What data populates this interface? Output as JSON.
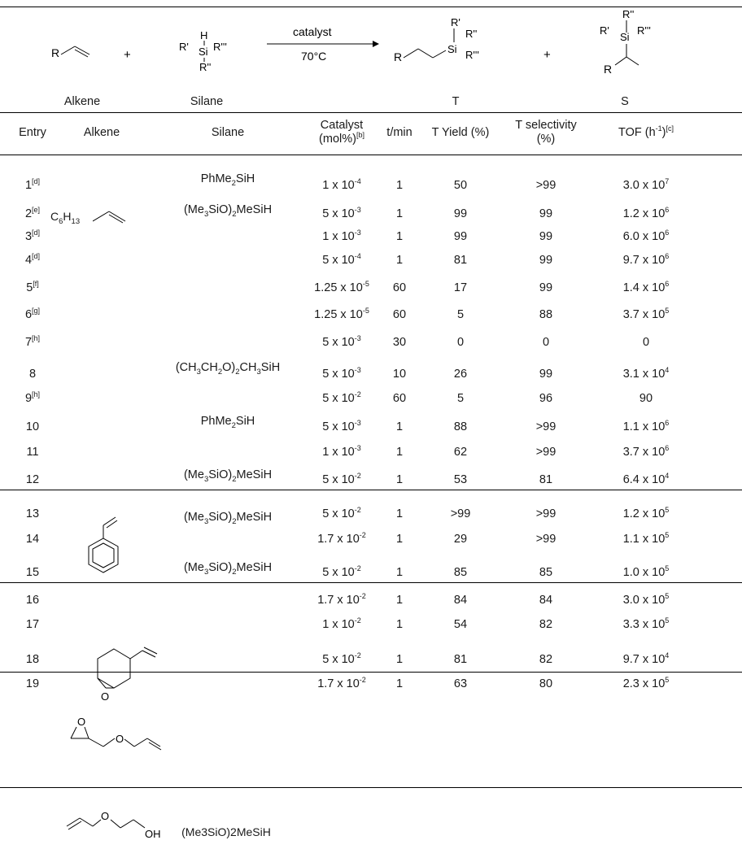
{
  "scheme": {
    "alkene_label": "Alkene",
    "silane_label": "Silane",
    "plus": "+",
    "catalyst": "catalyst",
    "temperature": "70°C",
    "product_t": "T",
    "product_s": "S",
    "r": "R",
    "r1": "R'",
    "r2": "R''",
    "r3": "R'''",
    "h": "H",
    "si": "Si"
  },
  "columns": {
    "entry": "Entry",
    "alkene": "Alkene",
    "silane": "Silane",
    "catalyst_line1": "Catalyst",
    "catalyst_line2": "(mol%)",
    "catalyst_note": "[b]",
    "time": "t/min",
    "yield": "T Yield (%)",
    "selectivity_line1": "T selectivity",
    "selectivity_line2": "(%)",
    "tof": "TOF (h",
    "tof_exp": "-1",
    "tof_end": ")",
    "tof_note": "[c]"
  },
  "alkene_labels": {
    "octene_formula": "C6H13",
    "epoxide_o": "O",
    "ether_o": "O",
    "alcohol_o": "O",
    "alcohol_oh": "OH"
  },
  "rows": [
    {
      "entry": "1",
      "note": "[d]",
      "silane": "PhMe2SiH",
      "cat_base": "1 x 10",
      "cat_exp": "-4",
      "t": "1",
      "yield": "50",
      "sel": ">99",
      "tof_base": "3.0 x 10",
      "tof_exp": "7"
    },
    {
      "entry": "2",
      "note": "[e]",
      "silane": "(Me3SiO)2MeSiH",
      "cat_base": "5 x 10",
      "cat_exp": "-3",
      "t": "1",
      "yield": "99",
      "sel": "99",
      "tof_base": "1.2 x 10",
      "tof_exp": "6"
    },
    {
      "entry": "3",
      "note": "[d]",
      "silane": "",
      "cat_base": "1 x 10",
      "cat_exp": "-3",
      "t": "1",
      "yield": "99",
      "sel": "99",
      "tof_base": "6.0 x 10",
      "tof_exp": "6"
    },
    {
      "entry": "4",
      "note": "[d]",
      "silane": "",
      "cat_base": "5 x 10",
      "cat_exp": "-4",
      "t": "1",
      "yield": "81",
      "sel": "99",
      "tof_base": "9.7 x 10",
      "tof_exp": "6"
    },
    {
      "entry": "5",
      "note": "[f]",
      "silane": "",
      "cat_base": "1.25 x 10",
      "cat_exp": "-5",
      "t": "60",
      "yield": "17",
      "sel": "99",
      "tof_base": "1.4 x 10",
      "tof_exp": "6"
    },
    {
      "entry": "6",
      "note": "[g]",
      "silane": "",
      "cat_base": "1.25 x 10",
      "cat_exp": "-5",
      "t": "60",
      "yield": "5",
      "sel": "88",
      "tof_base": "3.7 x 10",
      "tof_exp": "5"
    },
    {
      "entry": "7",
      "note": "[h]",
      "silane": "",
      "cat_base": "5 x 10",
      "cat_exp": "-3",
      "t": "30",
      "yield": "0",
      "sel": "0",
      "tof_base": "0",
      "tof_exp": ""
    },
    {
      "entry": "8",
      "note": "",
      "silane": "(CH3CH2O)2CH3SiH",
      "cat_base": "5 x 10",
      "cat_exp": "-3",
      "t": "10",
      "yield": "26",
      "sel": "99",
      "tof_base": "3.1 x 10",
      "tof_exp": "4"
    },
    {
      "entry": "9",
      "note": "[h]",
      "silane": "",
      "cat_base": "5 x 10",
      "cat_exp": "-2",
      "t": "60",
      "yield": "5",
      "sel": "96",
      "tof_base": "90",
      "tof_exp": ""
    },
    {
      "entry": "10",
      "note": "",
      "silane": "PhMe2SiH",
      "cat_base": "5 x 10",
      "cat_exp": "-3",
      "t": "1",
      "yield": "88",
      "sel": ">99",
      "tof_base": "1.1 x 10",
      "tof_exp": "6"
    },
    {
      "entry": "11",
      "note": "",
      "silane": "",
      "cat_base": "1 x 10",
      "cat_exp": "-3",
      "t": "1",
      "yield": "62",
      "sel": ">99",
      "tof_base": "3.7 x 10",
      "tof_exp": "6"
    },
    {
      "entry": "12",
      "note": "",
      "silane": "(Me3SiO)2MeSiH",
      "cat_base": "5 x 10",
      "cat_exp": "-2",
      "t": "1",
      "yield": "53",
      "sel": "81",
      "tof_base": "6.4 x 10",
      "tof_exp": "4"
    },
    {
      "entry": "13",
      "note": "",
      "silane": "(Me3SiO)2MeSiH",
      "cat_base": "5 x 10",
      "cat_exp": "-2",
      "t": "1",
      "yield": ">99",
      "sel": ">99",
      "tof_base": "1.2 x 10",
      "tof_exp": "5"
    },
    {
      "entry": "14",
      "note": "",
      "silane": "",
      "cat_base": "1.7 x 10",
      "cat_exp": "-2",
      "t": "1",
      "yield": "29",
      "sel": ">99",
      "tof_base": "1.1 x 10",
      "tof_exp": "5"
    },
    {
      "entry": "15",
      "note": "",
      "silane": "(Me3SiO)2MeSiH",
      "cat_base": "5 x 10",
      "cat_exp": "-2",
      "t": "1",
      "yield": "85",
      "sel": "85",
      "tof_base": "1.0 x 10",
      "tof_exp": "5"
    },
    {
      "entry": "16",
      "note": "",
      "silane": "",
      "cat_base": "1.7 x 10",
      "cat_exp": "-2",
      "t": "1",
      "yield": "84",
      "sel": "84",
      "tof_base": "3.0 x 10",
      "tof_exp": "5"
    },
    {
      "entry": "17",
      "note": "",
      "silane": "",
      "cat_base": "1 x 10",
      "cat_exp": "-2",
      "t": "1",
      "yield": "54",
      "sel": "82",
      "tof_base": "3.3 x 10",
      "tof_exp": "5"
    },
    {
      "entry": "18",
      "note": "",
      "silane": "",
      "cat_base": "5 x 10",
      "cat_exp": "-2",
      "t": "1",
      "yield": "81",
      "sel": "82",
      "tof_base": "9.7 x 10",
      "tof_exp": "4"
    },
    {
      "entry": "19",
      "note": "",
      "silane": "",
      "cat_base": "1.7 x 10",
      "cat_exp": "-2",
      "t": "1",
      "yield": "63",
      "sel": "80",
      "tof_base": "2.3 x 10",
      "tof_exp": "5"
    }
  ],
  "group5_silane": "(Me3SiO)2MeSiH"
}
